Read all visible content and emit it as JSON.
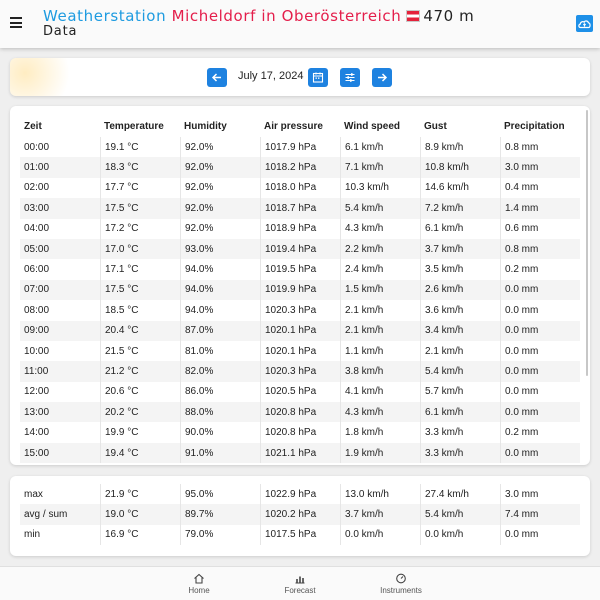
{
  "header": {
    "title_part1": "Weatherstation",
    "title_part2": "Micheldorf in Oberösterreich",
    "title_part3": "470 m",
    "subtitle": "Data",
    "menu_icon": "hamburger-menu-icon",
    "cloud_icon": "cloud-upload-icon",
    "flag": "austria-flag"
  },
  "date_nav": {
    "date": "July 17, 2024",
    "icons": [
      "arrow-left-icon",
      "calendar-icon",
      "sliders-icon",
      "arrow-right-icon"
    ]
  },
  "table": {
    "headers": [
      "Zeit",
      "Temperature",
      "Humidity",
      "Air pressure",
      "Wind speed",
      "Gust",
      "Precipitation"
    ],
    "rows": [
      [
        "00:00",
        "19.1 °C",
        "92.0%",
        "1017.9 hPa",
        "6.1 km/h",
        "8.9 km/h",
        "0.8 mm"
      ],
      [
        "01:00",
        "18.3 °C",
        "92.0%",
        "1018.2 hPa",
        "7.1 km/h",
        "10.8 km/h",
        "3.0 mm"
      ],
      [
        "02:00",
        "17.7 °C",
        "92.0%",
        "1018.0 hPa",
        "10.3 km/h",
        "14.6 km/h",
        "0.4 mm"
      ],
      [
        "03:00",
        "17.5 °C",
        "92.0%",
        "1018.7 hPa",
        "5.4 km/h",
        "7.2 km/h",
        "1.4 mm"
      ],
      [
        "04:00",
        "17.2 °C",
        "92.0%",
        "1018.9 hPa",
        "4.3 km/h",
        "6.1 km/h",
        "0.6 mm"
      ],
      [
        "05:00",
        "17.0 °C",
        "93.0%",
        "1019.4 hPa",
        "2.2 km/h",
        "3.7 km/h",
        "0.8 mm"
      ],
      [
        "06:00",
        "17.1 °C",
        "94.0%",
        "1019.5 hPa",
        "2.4 km/h",
        "3.5 km/h",
        "0.2 mm"
      ],
      [
        "07:00",
        "17.5 °C",
        "94.0%",
        "1019.9 hPa",
        "1.5 km/h",
        "2.6 km/h",
        "0.0 mm"
      ],
      [
        "08:00",
        "18.5 °C",
        "94.0%",
        "1020.3 hPa",
        "2.1 km/h",
        "3.6 km/h",
        "0.0 mm"
      ],
      [
        "09:00",
        "20.4 °C",
        "87.0%",
        "1020.1 hPa",
        "2.1 km/h",
        "3.4 km/h",
        "0.0 mm"
      ],
      [
        "10:00",
        "21.5 °C",
        "81.0%",
        "1020.1 hPa",
        "1.1 km/h",
        "2.1 km/h",
        "0.0 mm"
      ],
      [
        "11:00",
        "21.2 °C",
        "82.0%",
        "1020.3 hPa",
        "3.8 km/h",
        "5.4 km/h",
        "0.0 mm"
      ],
      [
        "12:00",
        "20.6 °C",
        "86.0%",
        "1020.5 hPa",
        "4.1 km/h",
        "5.7 km/h",
        "0.0 mm"
      ],
      [
        "13:00",
        "20.2 °C",
        "88.0%",
        "1020.8 hPa",
        "4.3 km/h",
        "6.1 km/h",
        "0.0 mm"
      ],
      [
        "14:00",
        "19.9 °C",
        "90.0%",
        "1020.8 hPa",
        "1.8 km/h",
        "3.3 km/h",
        "0.2 mm"
      ],
      [
        "15:00",
        "19.4 °C",
        "91.0%",
        "1021.1 hPa",
        "1.9 km/h",
        "3.3 km/h",
        "0.0 mm"
      ]
    ]
  },
  "summary": {
    "rows": [
      [
        "max",
        "21.9 °C",
        "95.0%",
        "1022.9 hPa",
        "13.0 km/h",
        "27.4 km/h",
        "3.0 mm"
      ],
      [
        "avg / sum",
        "19.0 °C",
        "89.7%",
        "1020.2 hPa",
        "3.7 km/h",
        "5.4 km/h",
        "7.4 mm"
      ],
      [
        "min",
        "16.9 °C",
        "79.0%",
        "1017.5 hPa",
        "0.0 km/h",
        "0.0 km/h",
        "0.0 mm"
      ]
    ]
  },
  "bottom_nav": {
    "items": [
      {
        "label": "Home",
        "icon": "home-icon"
      },
      {
        "label": "Forecast",
        "icon": "bar-chart-icon"
      },
      {
        "label": "Instruments",
        "icon": "gauge-icon"
      }
    ]
  },
  "colors": {
    "accent_blue": "#1e82e0",
    "title_blue": "#1e9be0",
    "title_red": "#e41e4b"
  }
}
